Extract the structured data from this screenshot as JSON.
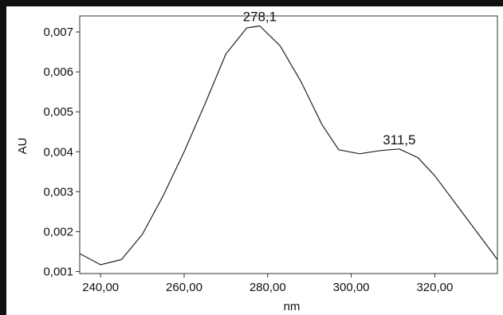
{
  "chart_data": {
    "type": "line",
    "title": "",
    "xlabel": "nm",
    "ylabel": "AU",
    "xlim": [
      235,
      335
    ],
    "ylim": [
      0.00095,
      0.0074
    ],
    "grid": false,
    "x_ticks": [
      240,
      260,
      280,
      300,
      320
    ],
    "x_tick_labels": [
      "240,00",
      "260,00",
      "280,00",
      "300,00",
      "320,00"
    ],
    "y_ticks": [
      0.001,
      0.002,
      0.003,
      0.004,
      0.005,
      0.006,
      0.007
    ],
    "y_tick_labels": [
      "0,001",
      "0,002",
      "0,003",
      "0,004",
      "0,005",
      "0,006",
      "0,007"
    ],
    "series": [
      {
        "x": [
          235,
          240,
          245,
          250,
          255,
          260,
          265,
          270,
          275,
          278.1,
          283,
          288,
          293,
          297,
          302,
          307,
          311.5,
          316,
          320,
          325,
          330,
          335
        ],
        "y": [
          0.00145,
          0.00117,
          0.0013,
          0.00193,
          0.0029,
          0.004,
          0.0052,
          0.00645,
          0.0071,
          0.00715,
          0.00665,
          0.00575,
          0.00468,
          0.00405,
          0.00395,
          0.00403,
          0.00407,
          0.00385,
          0.0034,
          0.0027,
          0.002,
          0.0013
        ]
      }
    ],
    "annotations": [
      {
        "text": "278,1",
        "x": 278.1,
        "y": 0.00715
      },
      {
        "text": "311,5",
        "x": 311.5,
        "y": 0.00407
      }
    ]
  }
}
